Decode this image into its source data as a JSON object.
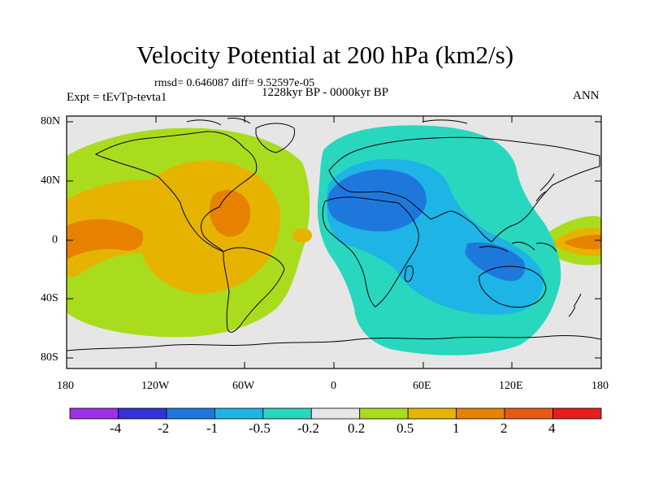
{
  "title": "Velocity Potential at 200 hPa (km2/s)",
  "subtitle": "rmsd= 0.646087 diff= 9.52597e-05",
  "period": "1228kyr BP - 0000kyr BP",
  "expt": "Expt = tEvTp-tevta1",
  "season": "ANN",
  "axes": {
    "lat_labels": [
      "80N",
      "40N",
      "0",
      "40S",
      "80S"
    ],
    "lon_labels": [
      "180",
      "120W",
      "60W",
      "0",
      "60E",
      "120E",
      "180"
    ]
  },
  "colorbar": {
    "colors": [
      "#9b30e6",
      "#3232d6",
      "#1e78dc",
      "#1eb4e6",
      "#28d7be",
      "#e6e6e6",
      "#aadc1e",
      "#e6b400",
      "#e68200",
      "#e65a14",
      "#e61e1e"
    ],
    "labels": [
      "-4",
      "-2",
      "-1",
      "-0.5",
      "-0.2",
      "0.2",
      "0.5",
      "1",
      "2",
      "4"
    ]
  },
  "colors": {
    "land_line": "#000000",
    "background": "#e6e6e6"
  }
}
